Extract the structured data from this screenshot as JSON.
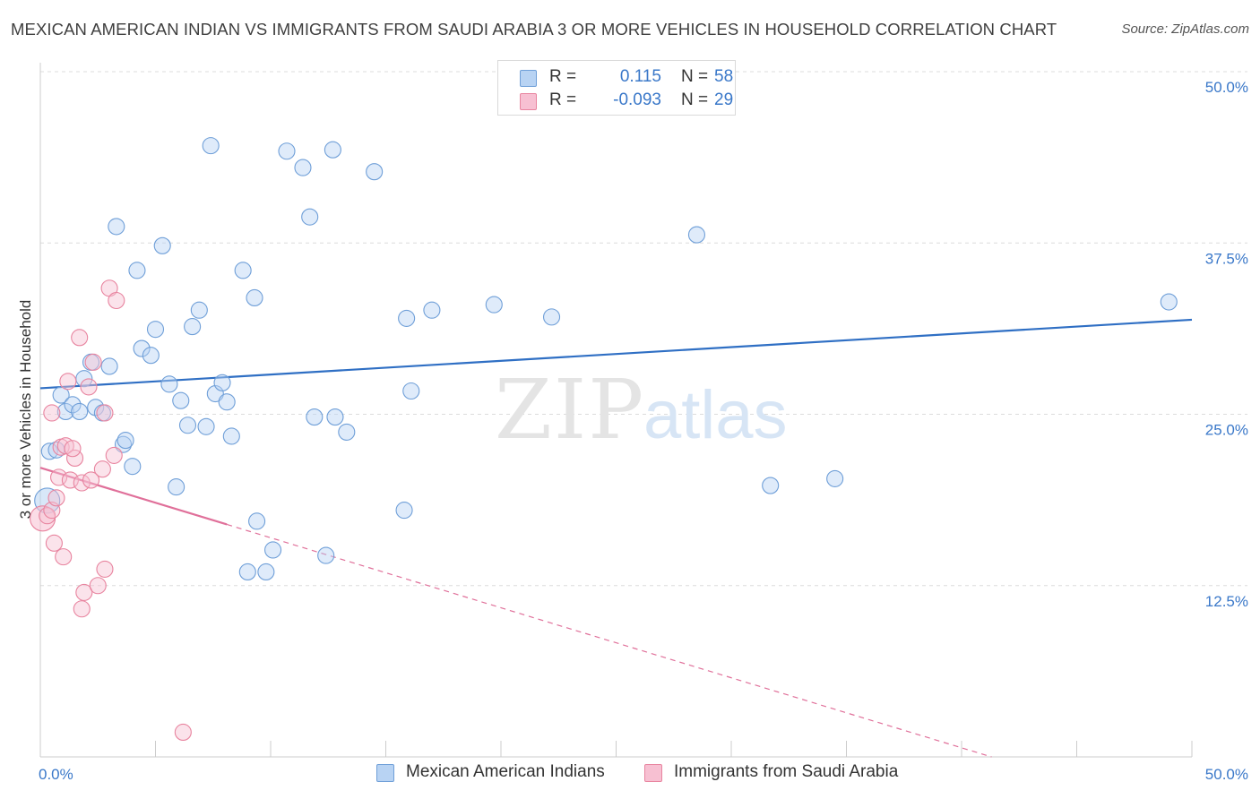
{
  "title": "MEXICAN AMERICAN INDIAN VS IMMIGRANTS FROM SAUDI ARABIA 3 OR MORE VEHICLES IN HOUSEHOLD CORRELATION CHART",
  "source": "Source: ZipAtlas.com",
  "watermark": {
    "zip": "ZIP",
    "atlas": "atlas"
  },
  "colors": {
    "blue_fill": "#b8d3f3",
    "blue_stroke": "#6f9fd8",
    "blue_line": "#2f6fc4",
    "pink_fill": "#f7c0d2",
    "pink_stroke": "#e8849f",
    "pink_line": "#e0709a",
    "value_text": "#3a78c9",
    "grid": "#dcdcdc"
  },
  "legend": {
    "series": [
      {
        "r_label": "R =",
        "r_value": "0.115",
        "n_label": "N =",
        "n_value": "58"
      },
      {
        "r_label": "R =",
        "r_value": "-0.093",
        "n_label": "N =",
        "n_value": "29"
      }
    ]
  },
  "chart_data": {
    "type": "scatter",
    "title": "MEXICAN AMERICAN INDIAN VS IMMIGRANTS FROM SAUDI ARABIA 3 OR MORE VEHICLES IN HOUSEHOLD CORRELATION CHART",
    "ylabel": "3 or more Vehicles in Household",
    "xlabel": "",
    "xlim": [
      0,
      50
    ],
    "ylim": [
      0,
      50
    ],
    "x_tick_labels": [
      {
        "value": 0,
        "label": "0.0%"
      },
      {
        "value": 50,
        "label": "50.0%"
      }
    ],
    "y_tick_labels": [
      {
        "value": 12.5,
        "label": "12.5%"
      },
      {
        "value": 25,
        "label": "25.0%"
      },
      {
        "value": 37.5,
        "label": "37.5%"
      },
      {
        "value": 50,
        "label": "50.0%"
      }
    ],
    "grid": true,
    "legend_position": "bottom",
    "series": [
      {
        "name": "Mexican American Indians",
        "color": "#6f9fd8",
        "trend": {
          "x": [
            0,
            50
          ],
          "y": [
            26.9,
            31.9
          ],
          "dashed_from": null
        },
        "points": [
          {
            "x": 0.3,
            "y": 18.7,
            "big": true
          },
          {
            "x": 0.4,
            "y": 22.3
          },
          {
            "x": 0.7,
            "y": 22.4
          },
          {
            "x": 0.9,
            "y": 26.4
          },
          {
            "x": 1.1,
            "y": 25.2
          },
          {
            "x": 1.4,
            "y": 25.7
          },
          {
            "x": 1.7,
            "y": 25.2
          },
          {
            "x": 1.9,
            "y": 27.6
          },
          {
            "x": 2.2,
            "y": 28.8
          },
          {
            "x": 2.4,
            "y": 25.5
          },
          {
            "x": 2.7,
            "y": 25.1
          },
          {
            "x": 3.0,
            "y": 28.5
          },
          {
            "x": 3.3,
            "y": 38.7
          },
          {
            "x": 3.6,
            "y": 22.8
          },
          {
            "x": 3.7,
            "y": 23.1
          },
          {
            "x": 4.0,
            "y": 21.2
          },
          {
            "x": 4.2,
            "y": 35.5
          },
          {
            "x": 4.4,
            "y": 29.8
          },
          {
            "x": 4.8,
            "y": 29.3
          },
          {
            "x": 5.0,
            "y": 31.2
          },
          {
            "x": 5.3,
            "y": 37.3
          },
          {
            "x": 5.6,
            "y": 27.2
          },
          {
            "x": 5.9,
            "y": 19.7
          },
          {
            "x": 6.1,
            "y": 26.0
          },
          {
            "x": 6.4,
            "y": 24.2
          },
          {
            "x": 6.6,
            "y": 31.4
          },
          {
            "x": 6.9,
            "y": 32.6
          },
          {
            "x": 7.2,
            "y": 24.1
          },
          {
            "x": 7.4,
            "y": 44.6
          },
          {
            "x": 7.6,
            "y": 26.5
          },
          {
            "x": 7.9,
            "y": 27.3
          },
          {
            "x": 8.1,
            "y": 25.9
          },
          {
            "x": 8.3,
            "y": 23.4
          },
          {
            "x": 8.8,
            "y": 35.5
          },
          {
            "x": 9.3,
            "y": 33.5
          },
          {
            "x": 9.4,
            "y": 17.2
          },
          {
            "x": 9.0,
            "y": 13.5
          },
          {
            "x": 9.8,
            "y": 13.5
          },
          {
            "x": 10.1,
            "y": 15.1
          },
          {
            "x": 10.7,
            "y": 44.2
          },
          {
            "x": 11.4,
            "y": 43.0
          },
          {
            "x": 11.7,
            "y": 39.4
          },
          {
            "x": 11.9,
            "y": 24.8
          },
          {
            "x": 12.4,
            "y": 14.7
          },
          {
            "x": 12.7,
            "y": 44.3
          },
          {
            "x": 12.8,
            "y": 24.8
          },
          {
            "x": 13.3,
            "y": 23.7
          },
          {
            "x": 14.5,
            "y": 42.7
          },
          {
            "x": 15.9,
            "y": 32.0
          },
          {
            "x": 15.8,
            "y": 18.0
          },
          {
            "x": 16.1,
            "y": 26.7
          },
          {
            "x": 17.0,
            "y": 32.6
          },
          {
            "x": 19.7,
            "y": 33.0
          },
          {
            "x": 22.2,
            "y": 32.1
          },
          {
            "x": 28.5,
            "y": 38.1
          },
          {
            "x": 31.7,
            "y": 19.8
          },
          {
            "x": 34.5,
            "y": 20.3
          },
          {
            "x": 49.0,
            "y": 33.2
          }
        ]
      },
      {
        "name": "Immigrants from Saudi Arabia",
        "color": "#e8849f",
        "trend": {
          "x": [
            0,
            41.3
          ],
          "y": [
            21.1,
            0
          ],
          "dashed_from": 8.1
        },
        "points": [
          {
            "x": 0.1,
            "y": 17.4,
            "big": true
          },
          {
            "x": 0.3,
            "y": 17.6
          },
          {
            "x": 0.5,
            "y": 18.0
          },
          {
            "x": 0.6,
            "y": 15.6
          },
          {
            "x": 0.7,
            "y": 18.9
          },
          {
            "x": 0.8,
            "y": 20.4
          },
          {
            "x": 0.9,
            "y": 22.6
          },
          {
            "x": 1.0,
            "y": 14.6
          },
          {
            "x": 1.1,
            "y": 22.7
          },
          {
            "x": 1.2,
            "y": 27.4
          },
          {
            "x": 1.3,
            "y": 20.2
          },
          {
            "x": 1.5,
            "y": 21.8
          },
          {
            "x": 1.7,
            "y": 30.6
          },
          {
            "x": 1.8,
            "y": 10.8
          },
          {
            "x": 1.9,
            "y": 12.0
          },
          {
            "x": 1.8,
            "y": 20.0
          },
          {
            "x": 2.1,
            "y": 27.0
          },
          {
            "x": 2.2,
            "y": 20.2
          },
          {
            "x": 2.3,
            "y": 28.8
          },
          {
            "x": 2.5,
            "y": 12.5
          },
          {
            "x": 2.7,
            "y": 21.0
          },
          {
            "x": 2.8,
            "y": 13.7
          },
          {
            "x": 2.8,
            "y": 25.1
          },
          {
            "x": 3.0,
            "y": 34.2
          },
          {
            "x": 3.2,
            "y": 22.0
          },
          {
            "x": 3.3,
            "y": 33.3
          },
          {
            "x": 6.2,
            "y": 1.8
          },
          {
            "x": 0.5,
            "y": 25.1
          },
          {
            "x": 1.4,
            "y": 22.5
          }
        ]
      }
    ]
  }
}
